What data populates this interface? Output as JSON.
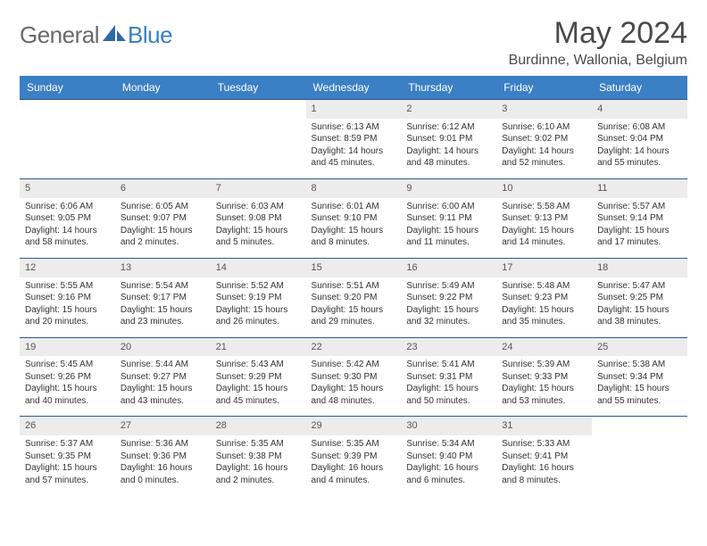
{
  "brand": {
    "part1": "General",
    "part2": "Blue"
  },
  "title": "May 2024",
  "location": "Burdinne, Wallonia, Belgium",
  "colors": {
    "header_bg": "#3b7fc4",
    "header_text": "#ffffff",
    "daynum_bg": "#ececec",
    "row_border": "#2f5a8a",
    "body_text": "#333333",
    "title_text": "#4a4a4a",
    "logo_gray": "#6a6a6a",
    "logo_blue": "#3b7fc4",
    "page_bg": "#ffffff"
  },
  "typography": {
    "title_fontsize": 34,
    "location_fontsize": 16,
    "header_fontsize": 12,
    "daynum_fontsize": 11,
    "cell_fontsize": 10
  },
  "weekdays": [
    "Sunday",
    "Monday",
    "Tuesday",
    "Wednesday",
    "Thursday",
    "Friday",
    "Saturday"
  ],
  "weeks": [
    [
      {
        "n": "",
        "sr": "",
        "ss": "",
        "dl": ""
      },
      {
        "n": "",
        "sr": "",
        "ss": "",
        "dl": ""
      },
      {
        "n": "",
        "sr": "",
        "ss": "",
        "dl": ""
      },
      {
        "n": "1",
        "sr": "Sunrise: 6:13 AM",
        "ss": "Sunset: 8:59 PM",
        "dl": "Daylight: 14 hours and 45 minutes."
      },
      {
        "n": "2",
        "sr": "Sunrise: 6:12 AM",
        "ss": "Sunset: 9:01 PM",
        "dl": "Daylight: 14 hours and 48 minutes."
      },
      {
        "n": "3",
        "sr": "Sunrise: 6:10 AM",
        "ss": "Sunset: 9:02 PM",
        "dl": "Daylight: 14 hours and 52 minutes."
      },
      {
        "n": "4",
        "sr": "Sunrise: 6:08 AM",
        "ss": "Sunset: 9:04 PM",
        "dl": "Daylight: 14 hours and 55 minutes."
      }
    ],
    [
      {
        "n": "5",
        "sr": "Sunrise: 6:06 AM",
        "ss": "Sunset: 9:05 PM",
        "dl": "Daylight: 14 hours and 58 minutes."
      },
      {
        "n": "6",
        "sr": "Sunrise: 6:05 AM",
        "ss": "Sunset: 9:07 PM",
        "dl": "Daylight: 15 hours and 2 minutes."
      },
      {
        "n": "7",
        "sr": "Sunrise: 6:03 AM",
        "ss": "Sunset: 9:08 PM",
        "dl": "Daylight: 15 hours and 5 minutes."
      },
      {
        "n": "8",
        "sr": "Sunrise: 6:01 AM",
        "ss": "Sunset: 9:10 PM",
        "dl": "Daylight: 15 hours and 8 minutes."
      },
      {
        "n": "9",
        "sr": "Sunrise: 6:00 AM",
        "ss": "Sunset: 9:11 PM",
        "dl": "Daylight: 15 hours and 11 minutes."
      },
      {
        "n": "10",
        "sr": "Sunrise: 5:58 AM",
        "ss": "Sunset: 9:13 PM",
        "dl": "Daylight: 15 hours and 14 minutes."
      },
      {
        "n": "11",
        "sr": "Sunrise: 5:57 AM",
        "ss": "Sunset: 9:14 PM",
        "dl": "Daylight: 15 hours and 17 minutes."
      }
    ],
    [
      {
        "n": "12",
        "sr": "Sunrise: 5:55 AM",
        "ss": "Sunset: 9:16 PM",
        "dl": "Daylight: 15 hours and 20 minutes."
      },
      {
        "n": "13",
        "sr": "Sunrise: 5:54 AM",
        "ss": "Sunset: 9:17 PM",
        "dl": "Daylight: 15 hours and 23 minutes."
      },
      {
        "n": "14",
        "sr": "Sunrise: 5:52 AM",
        "ss": "Sunset: 9:19 PM",
        "dl": "Daylight: 15 hours and 26 minutes."
      },
      {
        "n": "15",
        "sr": "Sunrise: 5:51 AM",
        "ss": "Sunset: 9:20 PM",
        "dl": "Daylight: 15 hours and 29 minutes."
      },
      {
        "n": "16",
        "sr": "Sunrise: 5:49 AM",
        "ss": "Sunset: 9:22 PM",
        "dl": "Daylight: 15 hours and 32 minutes."
      },
      {
        "n": "17",
        "sr": "Sunrise: 5:48 AM",
        "ss": "Sunset: 9:23 PM",
        "dl": "Daylight: 15 hours and 35 minutes."
      },
      {
        "n": "18",
        "sr": "Sunrise: 5:47 AM",
        "ss": "Sunset: 9:25 PM",
        "dl": "Daylight: 15 hours and 38 minutes."
      }
    ],
    [
      {
        "n": "19",
        "sr": "Sunrise: 5:45 AM",
        "ss": "Sunset: 9:26 PM",
        "dl": "Daylight: 15 hours and 40 minutes."
      },
      {
        "n": "20",
        "sr": "Sunrise: 5:44 AM",
        "ss": "Sunset: 9:27 PM",
        "dl": "Daylight: 15 hours and 43 minutes."
      },
      {
        "n": "21",
        "sr": "Sunrise: 5:43 AM",
        "ss": "Sunset: 9:29 PM",
        "dl": "Daylight: 15 hours and 45 minutes."
      },
      {
        "n": "22",
        "sr": "Sunrise: 5:42 AM",
        "ss": "Sunset: 9:30 PM",
        "dl": "Daylight: 15 hours and 48 minutes."
      },
      {
        "n": "23",
        "sr": "Sunrise: 5:41 AM",
        "ss": "Sunset: 9:31 PM",
        "dl": "Daylight: 15 hours and 50 minutes."
      },
      {
        "n": "24",
        "sr": "Sunrise: 5:39 AM",
        "ss": "Sunset: 9:33 PM",
        "dl": "Daylight: 15 hours and 53 minutes."
      },
      {
        "n": "25",
        "sr": "Sunrise: 5:38 AM",
        "ss": "Sunset: 9:34 PM",
        "dl": "Daylight: 15 hours and 55 minutes."
      }
    ],
    [
      {
        "n": "26",
        "sr": "Sunrise: 5:37 AM",
        "ss": "Sunset: 9:35 PM",
        "dl": "Daylight: 15 hours and 57 minutes."
      },
      {
        "n": "27",
        "sr": "Sunrise: 5:36 AM",
        "ss": "Sunset: 9:36 PM",
        "dl": "Daylight: 16 hours and 0 minutes."
      },
      {
        "n": "28",
        "sr": "Sunrise: 5:35 AM",
        "ss": "Sunset: 9:38 PM",
        "dl": "Daylight: 16 hours and 2 minutes."
      },
      {
        "n": "29",
        "sr": "Sunrise: 5:35 AM",
        "ss": "Sunset: 9:39 PM",
        "dl": "Daylight: 16 hours and 4 minutes."
      },
      {
        "n": "30",
        "sr": "Sunrise: 5:34 AM",
        "ss": "Sunset: 9:40 PM",
        "dl": "Daylight: 16 hours and 6 minutes."
      },
      {
        "n": "31",
        "sr": "Sunrise: 5:33 AM",
        "ss": "Sunset: 9:41 PM",
        "dl": "Daylight: 16 hours and 8 minutes."
      },
      {
        "n": "",
        "sr": "",
        "ss": "",
        "dl": ""
      }
    ]
  ]
}
